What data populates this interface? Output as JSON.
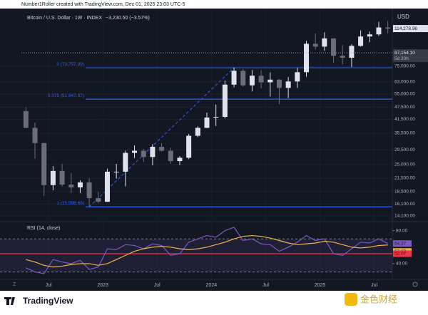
{
  "header": {
    "credit": "Number1Roller created with TradingView.com, Dec 01, 2025 23:03 UTC-5"
  },
  "chart_data": {
    "type": "candlestick",
    "title": "Bitcoin / U.S. Dollar · 1W · INDEX",
    "change": "−3,230.50 (−3.57%)",
    "currency": "USD",
    "log_scale": true,
    "grid": true,
    "x": [
      "2022-04",
      "2022-05",
      "2022-06",
      "2022-07",
      "2022-08",
      "2022-09",
      "2022-10",
      "2022-11",
      "2022-12",
      "2023-01",
      "2023-02",
      "2023-03",
      "2023-04",
      "2023-05",
      "2023-06",
      "2023-07",
      "2023-08",
      "2023-09",
      "2023-10",
      "2023-11",
      "2023-12",
      "2024-01",
      "2024-02",
      "2024-03",
      "2024-04",
      "2024-05",
      "2024-06",
      "2024-07",
      "2024-08",
      "2024-09",
      "2024-10",
      "2024-11",
      "2024-12",
      "2025-01",
      "2025-02",
      "2025-03",
      "2025-04",
      "2025-05",
      "2025-06",
      "2025-07",
      "2025-08"
    ],
    "open": [
      45500,
      37700,
      31800,
      19900,
      23300,
      20000,
      19400,
      20500,
      17200,
      16500,
      23100,
      23100,
      28500,
      29200,
      27200,
      30500,
      29200,
      26000,
      27000,
      34500,
      37700,
      42300,
      42600,
      61100,
      71300,
      60600,
      67500,
      62700,
      64600,
      58900,
      63300,
      70200,
      96400,
      93400,
      102400,
      84300,
      82500,
      94200,
      104600,
      107100,
      115700
    ],
    "high": [
      47400,
      40000,
      31900,
      24600,
      25200,
      22800,
      21000,
      21500,
      18400,
      23900,
      25200,
      29200,
      31000,
      29800,
      31400,
      31800,
      30200,
      27500,
      35200,
      38400,
      44700,
      48900,
      64000,
      73800,
      72700,
      71900,
      71900,
      70000,
      65000,
      66500,
      73600,
      99600,
      108300,
      109600,
      102500,
      95000,
      95800,
      111900,
      110500,
      123200,
      124400
    ],
    "low": [
      37600,
      26700,
      17600,
      18800,
      19600,
      18200,
      18200,
      15500,
      16300,
      16500,
      21400,
      19600,
      26900,
      25800,
      24800,
      28900,
      25200,
      24900,
      26600,
      34000,
      37600,
      38500,
      41900,
      59300,
      59600,
      56600,
      58600,
      53500,
      49100,
      52600,
      58900,
      66800,
      90500,
      89200,
      78200,
      76600,
      74400,
      93400,
      98200,
      105300,
      108000
    ],
    "close": [
      37700,
      31800,
      19900,
      23300,
      20000,
      19400,
      20500,
      17200,
      16500,
      23100,
      23100,
      28500,
      29200,
      27200,
      30500,
      29200,
      26000,
      27000,
      34500,
      37700,
      42300,
      42600,
      61100,
      71300,
      60600,
      67500,
      62700,
      64600,
      58900,
      63300,
      70200,
      96400,
      93400,
      102400,
      84300,
      82500,
      94200,
      104600,
      107100,
      115700,
      114278.96
    ],
    "last_label": "114,278.96",
    "up_color": "#e0e3eb",
    "down_color": "#6a6d78",
    "xlim": [
      "2022-04",
      "2025-09"
    ],
    "xticks": [
      {
        "value": "2022-07",
        "label": "Jul"
      },
      {
        "value": "2023-01",
        "label": "2023"
      },
      {
        "value": "2023-07",
        "label": "Jul"
      },
      {
        "value": "2024-01",
        "label": "2024"
      },
      {
        "value": "2024-07",
        "label": "Jul"
      },
      {
        "value": "2025-01",
        "label": "2025"
      },
      {
        "value": "2025-07",
        "label": "Jul"
      }
    ],
    "ylim": [
      13330,
      142900
    ],
    "yticks": [
      {
        "value": 75000,
        "label": "75,000.00"
      },
      {
        "value": 63000,
        "label": "63,000.00"
      },
      {
        "value": 55000,
        "label": "55,000.00"
      },
      {
        "value": 47500,
        "label": "47,500.00"
      },
      {
        "value": 41500,
        "label": "41,500.00"
      },
      {
        "value": 35500,
        "label": "35,500.00"
      },
      {
        "value": 29500,
        "label": "29,500.00"
      },
      {
        "value": 25000,
        "label": "25,000.00"
      },
      {
        "value": 21500,
        "label": "21,500.00"
      },
      {
        "value": 18500,
        "label": "18,500.00"
      },
      {
        "value": 16100,
        "label": "16,100.00"
      },
      {
        "value": 14100,
        "label": "14,100.00"
      }
    ],
    "price_line": {
      "value": 87154.1,
      "label": "87,154.10",
      "countdown": "5d 20h"
    },
    "fib_color": "#2962ff",
    "fib_levels": [
      {
        "value": 73757.39,
        "label": "0 (73,757.39)"
      },
      {
        "value": 51947.87,
        "label": "0.375 (51,947.87)"
      },
      {
        "value": 15598.68,
        "label": "1 (15,598.68)"
      }
    ],
    "rsi": {
      "title": "RSI (14, close)",
      "ylim": [
        21,
        90
      ],
      "yticks": [
        {
          "value": 80,
          "label": "80.00"
        },
        {
          "value": 40,
          "label": "40.00"
        }
      ],
      "band": [
        30,
        70
      ],
      "level": {
        "value": 52.07,
        "label": "52.07",
        "color": "#f23645"
      },
      "series": [
        {
          "name": "RSI",
          "color": "#7e57c2",
          "values": [
            35,
            30,
            28,
            45,
            42,
            40,
            44,
            33,
            36,
            58,
            57,
            63,
            62,
            58,
            64,
            62,
            50,
            52,
            66,
            70,
            74,
            72,
            80,
            84,
            68,
            70,
            64,
            63,
            55,
            60,
            66,
            74,
            68,
            70,
            52,
            50,
            58,
            66,
            65,
            70,
            64.37
          ]
        },
        {
          "name": "MA",
          "color": "#f0b44a",
          "values": [
            45,
            42,
            38,
            36,
            37,
            39,
            40,
            40,
            38,
            40,
            45,
            50,
            55,
            58,
            60,
            61,
            60,
            58,
            57,
            58,
            60,
            63,
            66,
            70,
            73,
            74,
            73,
            71,
            68,
            65,
            63,
            64,
            65,
            67,
            66,
            63,
            60,
            59,
            60,
            62,
            62.6
          ],
          "last_value_label": "62.60"
        }
      ]
    }
  },
  "footer": {
    "logo": "TradingView",
    "watermark": "金色财经"
  }
}
